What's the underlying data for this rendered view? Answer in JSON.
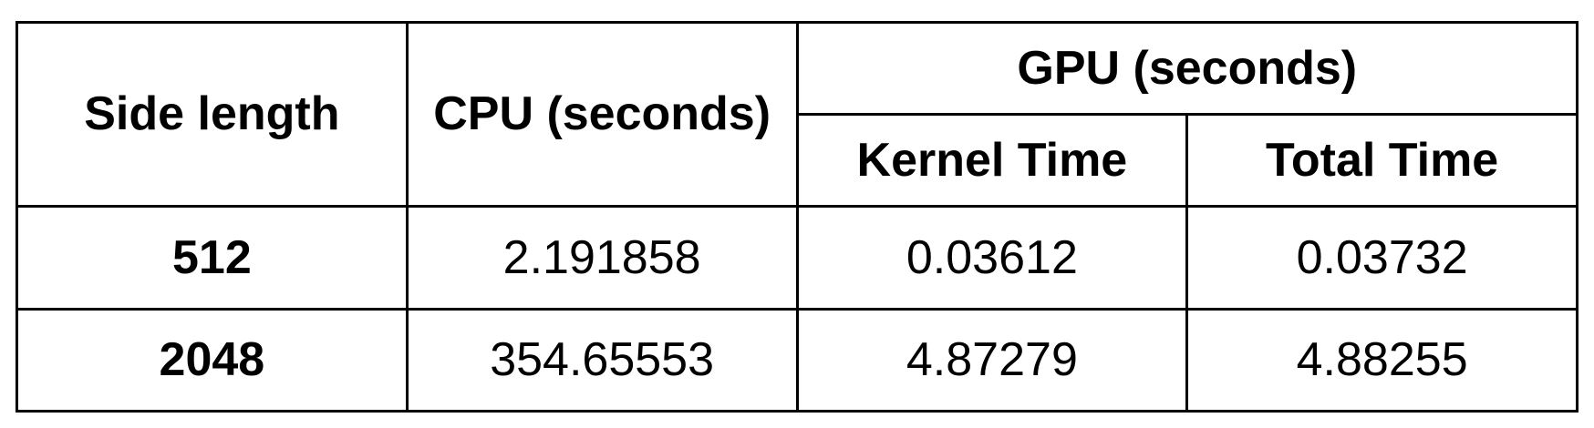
{
  "chart_data": {
    "type": "table",
    "headers": {
      "side_length": "Side length",
      "cpu": "CPU (seconds)",
      "gpu_group": "GPU (seconds)",
      "kernel_time": "Kernel Time",
      "total_time": "Total Time"
    },
    "columns": [
      "Side length",
      "CPU (seconds)",
      "Kernel Time",
      "Total Time"
    ],
    "rows": [
      [
        "512",
        "2.191858",
        "0.03612",
        "0.03732"
      ],
      [
        "2048",
        "354.65553",
        "4.87279",
        "4.88255"
      ]
    ]
  }
}
